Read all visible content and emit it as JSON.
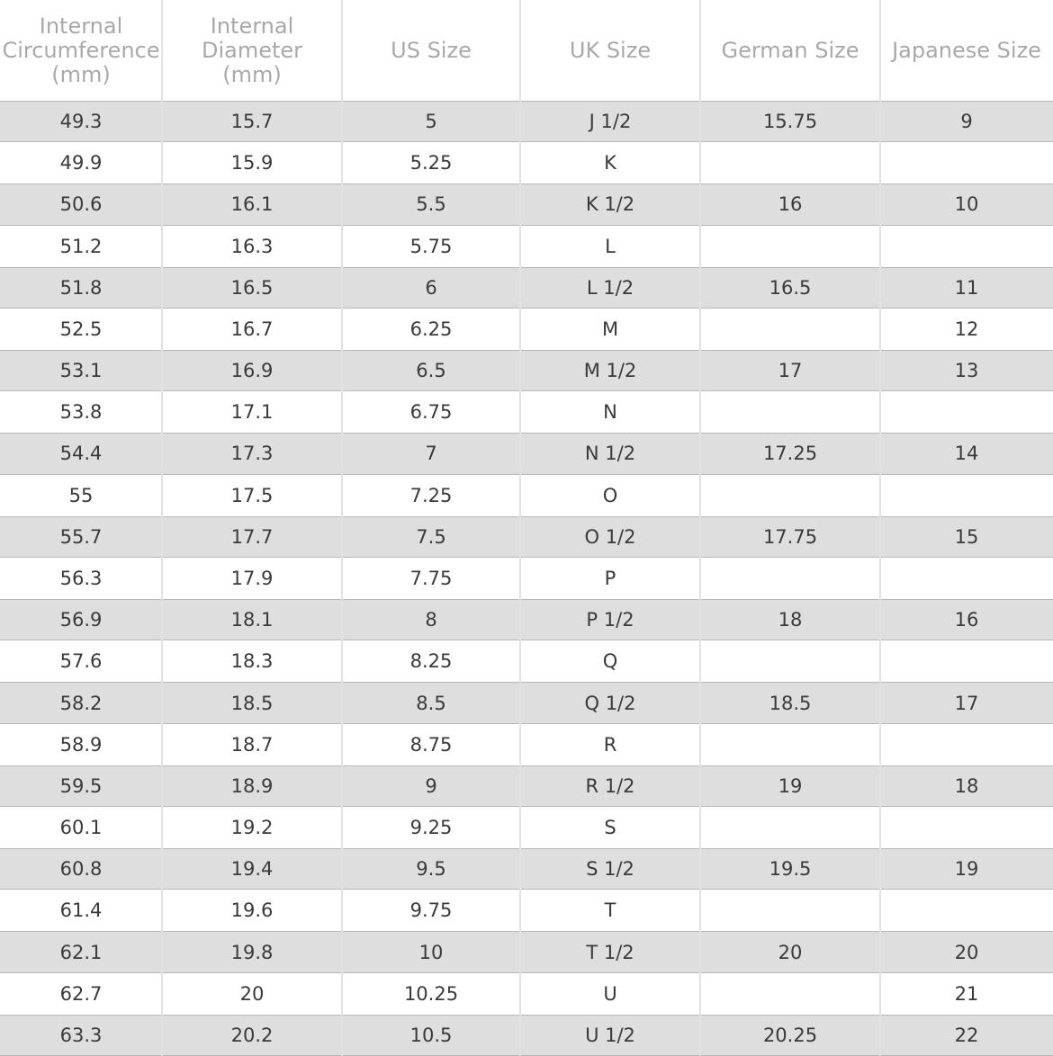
{
  "table": {
    "header": [
      [
        "Internal",
        "Circumference",
        "(mm)"
      ],
      [
        "Internal",
        "Diameter",
        "(mm)"
      ],
      [
        "US Size"
      ],
      [
        "UK Size"
      ],
      [
        "German Size"
      ],
      [
        "Japanese Size"
      ]
    ],
    "rows": [
      [
        "49.3",
        "15.7",
        "5",
        "J 1/2",
        "15.75",
        "9"
      ],
      [
        "49.9",
        "15.9",
        "5.25",
        "K",
        null,
        null
      ],
      [
        "50.6",
        "16.1",
        "5.5",
        "K 1/2",
        "16",
        "10"
      ],
      [
        "51.2",
        "16.3",
        "5.75",
        "L",
        null,
        null
      ],
      [
        "51.8",
        "16.5",
        "6",
        "L 1/2",
        "16.5",
        "11"
      ],
      [
        "52.5",
        "16.7",
        "6.25",
        "M",
        null,
        "12"
      ],
      [
        "53.1",
        "16.9",
        "6.5",
        "M 1/2",
        "17",
        "13"
      ],
      [
        "53.8",
        "17.1",
        "6.75",
        "N",
        null,
        null
      ],
      [
        "54.4",
        "17.3",
        "7",
        "N 1/2",
        "17.25",
        "14"
      ],
      [
        "55",
        "17.5",
        "7.25",
        "O",
        null,
        null
      ],
      [
        "55.7",
        "17.7",
        "7.5",
        "O 1/2",
        "17.75",
        "15"
      ],
      [
        "56.3",
        "17.9",
        "7.75",
        "P",
        null,
        null
      ],
      [
        "56.9",
        "18.1",
        "8",
        "P 1/2",
        "18",
        "16"
      ],
      [
        "57.6",
        "18.3",
        "8.25",
        "Q",
        null,
        null
      ],
      [
        "58.2",
        "18.5",
        "8.5",
        "Q 1/2",
        "18.5",
        "17"
      ],
      [
        "58.9",
        "18.7",
        "8.75",
        "R",
        null,
        null
      ],
      [
        "59.5",
        "18.9",
        "9",
        "R 1/2",
        "19",
        "18"
      ],
      [
        "60.1",
        "19.2",
        "9.25",
        "S",
        null,
        null
      ],
      [
        "60.8",
        "19.4",
        "9.5",
        "S 1/2",
        "19.5",
        "19"
      ],
      [
        "61.4",
        "19.6",
        "9.75",
        "T",
        null,
        null
      ],
      [
        "62.1",
        "19.8",
        "10",
        "T 1/2",
        "20",
        "20"
      ],
      [
        "62.7",
        "20",
        "10.25",
        "U",
        null,
        "21"
      ],
      [
        "63.3",
        "20.2",
        "10.5",
        "U 1/2",
        "20.25",
        "22"
      ]
    ]
  }
}
